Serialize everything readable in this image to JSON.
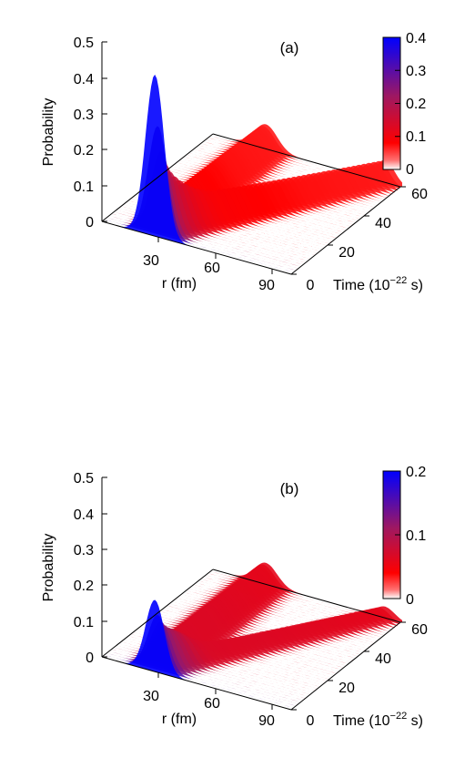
{
  "chart_data": [
    {
      "type": "surface3d",
      "panel_label": "(a)",
      "zlabel": "Probability",
      "xlabel": "r (fm)",
      "ylabel_prefix": "Time (10",
      "ylabel_exp": "−22",
      "ylabel_suffix": " s)",
      "z_ticks": [
        "0",
        "0.1",
        "0.2",
        "0.3",
        "0.4",
        "0.5"
      ],
      "r_ticks": [
        "30",
        "60",
        "90"
      ],
      "t_ticks": [
        "0",
        "20",
        "40",
        "60"
      ],
      "zlim": [
        0,
        0.5
      ],
      "rlim": [
        0,
        100
      ],
      "tlim": [
        0,
        60
      ],
      "colorbar": {
        "ticks": [
          "0",
          "0.1",
          "0.2",
          "0.3",
          "0.4"
        ],
        "max": 0.4
      },
      "surface": {
        "peak_r": 28,
        "peak_t": 2,
        "peak_value": 0.45,
        "ridge_value": 0.08,
        "split_value": 0.1
      }
    },
    {
      "type": "surface3d",
      "panel_label": "(b)",
      "zlabel": "Probability",
      "xlabel": "r (fm)",
      "ylabel_prefix": "Time (10",
      "ylabel_exp": "−22",
      "ylabel_suffix": " s)",
      "z_ticks": [
        "0",
        "0.1",
        "0.2",
        "0.3",
        "0.4",
        "0.5"
      ],
      "r_ticks": [
        "30",
        "60",
        "90"
      ],
      "t_ticks": [
        "0",
        "20",
        "40",
        "60"
      ],
      "zlim": [
        0,
        0.5
      ],
      "rlim": [
        0,
        100
      ],
      "tlim": [
        0,
        60
      ],
      "colorbar": {
        "ticks": [
          "0",
          "0.1",
          "0.2"
        ],
        "max": 0.2
      },
      "surface": {
        "peak_r": 28,
        "peak_t": 2,
        "peak_value": 0.2,
        "ridge_value": 0.07,
        "split_value": 0.05
      }
    }
  ]
}
